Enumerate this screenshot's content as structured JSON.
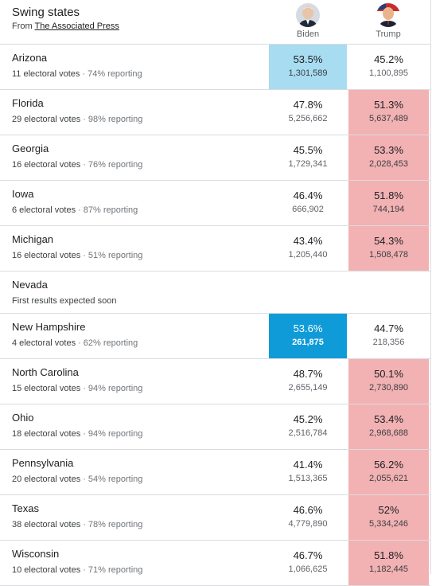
{
  "header": {
    "title": "Swing states",
    "source_prefix": "From",
    "source_link": "The Associated Press",
    "candidates": [
      {
        "name": "Biden"
      },
      {
        "name": "Trump"
      }
    ]
  },
  "colors": {
    "trump_win": "#f2b1b3",
    "biden_win_called": "#0f9bd8",
    "biden_leading": "#a7dcf1"
  },
  "states": [
    {
      "name": "Arizona",
      "ev": "11 electoral votes",
      "reporting": "74% reporting",
      "biden_pct": "53.5%",
      "biden_votes": "1,301,589",
      "trump_pct": "45.2%",
      "trump_votes": "1,100,895",
      "leader": "biden-lead"
    },
    {
      "name": "Florida",
      "ev": "29 electoral votes",
      "reporting": "98% reporting",
      "biden_pct": "47.8%",
      "biden_votes": "5,256,662",
      "trump_pct": "51.3%",
      "trump_votes": "5,637,489",
      "leader": "trump"
    },
    {
      "name": "Georgia",
      "ev": "16 electoral votes",
      "reporting": "76% reporting",
      "biden_pct": "45.5%",
      "biden_votes": "1,729,341",
      "trump_pct": "53.3%",
      "trump_votes": "2,028,453",
      "leader": "trump"
    },
    {
      "name": "Iowa",
      "ev": "6 electoral votes",
      "reporting": "87% reporting",
      "biden_pct": "46.4%",
      "biden_votes": "666,902",
      "trump_pct": "51.8%",
      "trump_votes": "744,194",
      "leader": "trump"
    },
    {
      "name": "Michigan",
      "ev": "16 electoral votes",
      "reporting": "51% reporting",
      "biden_pct": "43.4%",
      "biden_votes": "1,205,440",
      "trump_pct": "54.3%",
      "trump_votes": "1,508,478",
      "leader": "trump"
    },
    {
      "name": "Nevada",
      "note": "First results expected soon"
    },
    {
      "name": "New Hampshire",
      "ev": "4 electoral votes",
      "reporting": "62% reporting",
      "biden_pct": "53.6%",
      "biden_votes": "261,875",
      "trump_pct": "44.7%",
      "trump_votes": "218,356",
      "leader": "biden-win"
    },
    {
      "name": "North Carolina",
      "ev": "15 electoral votes",
      "reporting": "94% reporting",
      "biden_pct": "48.7%",
      "biden_votes": "2,655,149",
      "trump_pct": "50.1%",
      "trump_votes": "2,730,890",
      "leader": "trump"
    },
    {
      "name": "Ohio",
      "ev": "18 electoral votes",
      "reporting": "94% reporting",
      "biden_pct": "45.2%",
      "biden_votes": "2,516,784",
      "trump_pct": "53.4%",
      "trump_votes": "2,968,688",
      "leader": "trump"
    },
    {
      "name": "Pennsylvania",
      "ev": "20 electoral votes",
      "reporting": "54% reporting",
      "biden_pct": "41.4%",
      "biden_votes": "1,513,365",
      "trump_pct": "56.2%",
      "trump_votes": "2,055,621",
      "leader": "trump"
    },
    {
      "name": "Texas",
      "ev": "38 electoral votes",
      "reporting": "78% reporting",
      "biden_pct": "46.6%",
      "biden_votes": "4,779,890",
      "trump_pct": "52%",
      "trump_votes": "5,334,246",
      "leader": "trump"
    },
    {
      "name": "Wisconsin",
      "ev": "10 electoral votes",
      "reporting": "71% reporting",
      "biden_pct": "46.7%",
      "biden_votes": "1,066,625",
      "trump_pct": "51.8%",
      "trump_votes": "1,182,445",
      "leader": "trump"
    }
  ]
}
